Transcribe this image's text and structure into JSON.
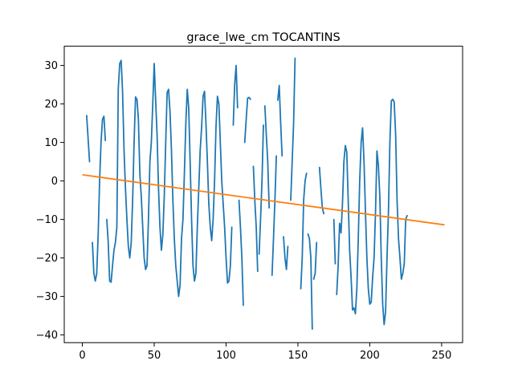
{
  "chart_data": {
    "type": "line",
    "title": "grace_lwe_cm TOCANTINS",
    "xlabel": "",
    "ylabel": "",
    "xlim": [
      -12.6,
      264.6
    ],
    "ylim": [
      -42.0,
      35.0
    ],
    "xticks": [
      0,
      50,
      100,
      150,
      200,
      250
    ],
    "yticks": [
      -40,
      -30,
      -20,
      -10,
      0,
      10,
      20,
      30
    ],
    "grid": false,
    "colors": {
      "data": "#1f77b4",
      "trend": "#ff7f0e"
    },
    "series": [
      {
        "role": "data",
        "segments": [
          [
            [
              3,
              17
            ],
            [
              4,
              11
            ],
            [
              5,
              5
            ]
          ],
          [
            [
              7,
              -16
            ],
            [
              8,
              -24
            ],
            [
              9,
              -26
            ],
            [
              10,
              -24
            ],
            [
              11,
              -14
            ],
            [
              12,
              0
            ],
            [
              13,
              10
            ],
            [
              14,
              16
            ],
            [
              15,
              16.8
            ],
            [
              16,
              10.5
            ]
          ],
          [
            [
              17,
              -10
            ],
            [
              18,
              -16
            ],
            [
              19,
              -26
            ],
            [
              20,
              -26.3
            ],
            [
              21,
              -22
            ],
            [
              22,
              -18
            ],
            [
              23,
              -16
            ],
            [
              24,
              -12
            ],
            [
              25,
              24
            ],
            [
              26,
              30.5
            ],
            [
              27,
              31.3
            ],
            [
              28,
              23
            ],
            [
              29,
              8
            ],
            [
              30,
              -2
            ],
            [
              31,
              -10
            ],
            [
              32,
              -17
            ],
            [
              33,
              -20
            ],
            [
              34,
              -16
            ],
            [
              35,
              -5
            ],
            [
              36,
              10
            ],
            [
              37,
              21.8
            ],
            [
              38,
              21.2
            ],
            [
              39,
              16
            ],
            [
              40,
              2
            ],
            [
              41,
              -4
            ],
            [
              42,
              -12
            ],
            [
              43,
              -20
            ],
            [
              44,
              -23
            ],
            [
              45,
              -22
            ],
            [
              46,
              -10
            ],
            [
              47,
              5
            ],
            [
              48,
              10
            ],
            [
              49,
              20
            ],
            [
              50,
              30.5
            ],
            [
              51,
              21
            ],
            [
              52,
              12
            ],
            [
              53,
              -2
            ],
            [
              54,
              -12
            ],
            [
              55,
              -18
            ],
            [
              56,
              -14
            ],
            [
              57,
              -4
            ],
            [
              58,
              10
            ],
            [
              59,
              23
            ],
            [
              60,
              23.8
            ],
            [
              61,
              18
            ],
            [
              62,
              8
            ],
            [
              63,
              -5
            ],
            [
              64,
              -15
            ],
            [
              65,
              -22
            ],
            [
              66,
              -26
            ],
            [
              67,
              -30
            ],
            [
              68,
              -27
            ],
            [
              69,
              -15
            ],
            [
              70,
              -10
            ],
            [
              71,
              2
            ],
            [
              72,
              15
            ],
            [
              73,
              23.8
            ],
            [
              74,
              19
            ],
            [
              75,
              5
            ],
            [
              76,
              -10
            ],
            [
              77,
              -22
            ],
            [
              78,
              -26
            ],
            [
              79,
              -24
            ],
            [
              80,
              -12
            ],
            [
              81,
              -2
            ],
            [
              82,
              8
            ],
            [
              83,
              14
            ],
            [
              84,
              22
            ],
            [
              85,
              23.3
            ],
            [
              86,
              15
            ],
            [
              87,
              5
            ],
            [
              88,
              -6
            ],
            [
              89,
              -12
            ],
            [
              90,
              -15.5
            ],
            [
              91,
              -10
            ],
            [
              92,
              0
            ],
            [
              93,
              14
            ],
            [
              94,
              22
            ],
            [
              95,
              20
            ],
            [
              96,
              10
            ],
            [
              97,
              0
            ],
            [
              98,
              -6
            ],
            [
              99,
              -12
            ],
            [
              100,
              -20
            ],
            [
              101,
              -26.5
            ],
            [
              102,
              -26
            ],
            [
              103,
              -22
            ],
            [
              104,
              -12
            ]
          ],
          [
            [
              105,
              14.5
            ],
            [
              106,
              25
            ],
            [
              107,
              30
            ],
            [
              108,
              19
            ]
          ],
          [
            [
              109,
              -5
            ],
            [
              110,
              -12
            ],
            [
              111,
              -20
            ],
            [
              112,
              -32.3
            ]
          ],
          [
            [
              113,
              10
            ],
            [
              114,
              16
            ],
            [
              115,
              21.5
            ],
            [
              116,
              21.7
            ],
            [
              117,
              21.2
            ]
          ],
          [
            [
              119,
              3.8
            ],
            [
              120,
              -5
            ],
            [
              121,
              -12
            ],
            [
              122,
              -23.5
            ]
          ],
          [
            [
              123,
              -19
            ],
            [
              124,
              -10
            ],
            [
              125,
              0
            ],
            [
              126,
              14.5
            ]
          ],
          [
            [
              127,
              19.5
            ],
            [
              128,
              12
            ],
            [
              129,
              5
            ],
            [
              130,
              -7
            ]
          ],
          [
            [
              132,
              -24.5
            ],
            [
              133,
              -15
            ],
            [
              134,
              -5
            ],
            [
              135,
              6.5
            ]
          ],
          [
            [
              136,
              21
            ],
            [
              137,
              24.8
            ],
            [
              138,
              15
            ],
            [
              139,
              6.5
            ]
          ],
          [
            [
              140,
              -14.5
            ],
            [
              141,
              -20
            ],
            [
              142,
              -23
            ],
            [
              143,
              -17
            ]
          ],
          [
            [
              145,
              -5
            ],
            [
              146,
              5
            ],
            [
              147,
              15
            ],
            [
              148,
              31.9
            ]
          ],
          [
            [
              151,
              -25.5
            ]
          ],
          [
            [
              152,
              -28
            ],
            [
              153,
              -20
            ],
            [
              154,
              -5
            ],
            [
              155,
              0
            ],
            [
              156,
              2
            ]
          ],
          [
            [
              157,
              -13.8
            ],
            [
              158,
              -15
            ],
            [
              159,
              -20
            ],
            [
              160,
              -38.5
            ]
          ],
          [
            [
              161,
              -25.5
            ],
            [
              162,
              -24
            ],
            [
              163,
              -16
            ]
          ],
          [
            [
              165,
              3.5
            ],
            [
              166,
              -2
            ],
            [
              167,
              -7
            ],
            [
              168,
              -8.5
            ]
          ],
          [
            [
              175,
              -10
            ],
            [
              176,
              -21.5
            ]
          ],
          [
            [
              177,
              -29.5
            ],
            [
              178,
              -22
            ],
            [
              179,
              -11
            ],
            [
              180,
              -13.5
            ],
            [
              181,
              -6
            ],
            [
              182,
              5
            ],
            [
              183,
              9.2
            ],
            [
              184,
              7.5
            ],
            [
              185,
              -5
            ],
            [
              186,
              -18
            ],
            [
              187,
              -25
            ],
            [
              188,
              -33.5
            ],
            [
              189,
              -33
            ],
            [
              190,
              -34.5
            ],
            [
              191,
              -28
            ],
            [
              192,
              -15
            ],
            [
              193,
              0
            ],
            [
              194,
              10
            ],
            [
              195,
              13.8
            ],
            [
              196,
              5
            ],
            [
              197,
              -8
            ],
            [
              198,
              -20
            ],
            [
              199,
              -28
            ],
            [
              200,
              -32
            ],
            [
              201,
              -31.5
            ],
            [
              202,
              -25
            ],
            [
              203,
              -20
            ],
            [
              204,
              -8
            ],
            [
              205,
              7.8
            ],
            [
              206,
              4
            ],
            [
              207,
              -4
            ],
            [
              208,
              -20
            ],
            [
              209,
              -32
            ],
            [
              210,
              -37.3
            ],
            [
              211,
              -34
            ],
            [
              212,
              -20
            ],
            [
              213,
              -8
            ],
            [
              214,
              10
            ],
            [
              215,
              20.8
            ],
            [
              216,
              21.2
            ],
            [
              217,
              20.5
            ],
            [
              218,
              12
            ],
            [
              219,
              -5
            ],
            [
              220,
              -15
            ],
            [
              221,
              -20
            ],
            [
              222,
              -25.5
            ],
            [
              223,
              -24
            ],
            [
              224,
              -21.5
            ],
            [
              225,
              -10
            ],
            [
              226,
              -9
            ]
          ]
        ]
      },
      {
        "role": "trend",
        "points": [
          [
            0,
            1.6
          ],
          [
            252,
            -11.4
          ]
        ]
      }
    ]
  }
}
